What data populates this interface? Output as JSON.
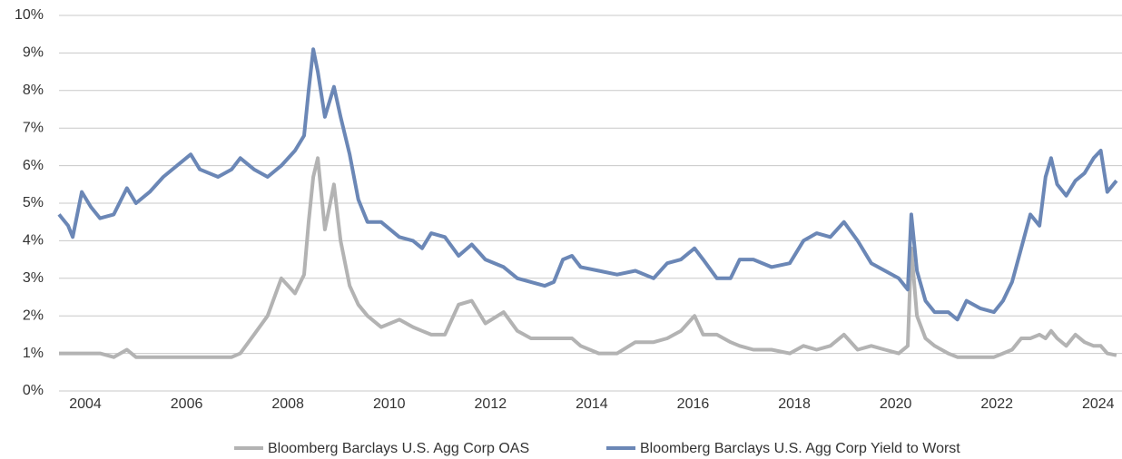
{
  "chart_data": {
    "type": "line",
    "x": [
      2003.48,
      2003.66,
      2003.75,
      2003.93,
      2004.11,
      2004.29,
      2004.56,
      2004.82,
      2005.0,
      2005.27,
      2005.54,
      2005.81,
      2006.08,
      2006.26,
      2006.62,
      2006.89,
      2007.06,
      2007.33,
      2007.6,
      2007.87,
      2008.14,
      2008.32,
      2008.41,
      2008.5,
      2008.59,
      2008.73,
      2008.91,
      2009.04,
      2009.22,
      2009.39,
      2009.57,
      2009.84,
      2010.2,
      2010.47,
      2010.65,
      2010.83,
      2011.1,
      2011.37,
      2011.63,
      2011.9,
      2012.26,
      2012.53,
      2012.8,
      2013.07,
      2013.25,
      2013.43,
      2013.61,
      2013.78,
      2014.14,
      2014.5,
      2014.86,
      2015.22,
      2015.49,
      2015.76,
      2016.03,
      2016.2,
      2016.47,
      2016.74,
      2016.92,
      2017.19,
      2017.55,
      2017.91,
      2018.18,
      2018.44,
      2018.71,
      2018.98,
      2019.25,
      2019.52,
      2019.79,
      2020.06,
      2020.24,
      2020.31,
      2020.42,
      2020.59,
      2020.77,
      2021.04,
      2021.22,
      2021.4,
      2021.67,
      2021.94,
      2022.12,
      2022.3,
      2022.48,
      2022.66,
      2022.84,
      2022.96,
      2023.07,
      2023.19,
      2023.37,
      2023.55,
      2023.73,
      2023.91,
      2024.05,
      2024.18,
      2024.36
    ],
    "series": [
      {
        "name": "Bloomberg Barclays U.S. Agg Corp OAS",
        "color": "#b3b3b3",
        "values": [
          1.0,
          1.0,
          1.0,
          1.0,
          1.0,
          1.0,
          0.9,
          1.1,
          0.9,
          0.9,
          0.9,
          0.9,
          0.9,
          0.9,
          0.9,
          0.9,
          1.0,
          1.5,
          2.0,
          3.0,
          2.6,
          3.1,
          4.5,
          5.7,
          6.2,
          4.3,
          5.5,
          4.0,
          2.8,
          2.3,
          2.0,
          1.7,
          1.9,
          1.7,
          1.6,
          1.5,
          1.5,
          2.3,
          2.4,
          1.8,
          2.1,
          1.6,
          1.4,
          1.4,
          1.4,
          1.4,
          1.4,
          1.2,
          1.0,
          1.0,
          1.3,
          1.3,
          1.4,
          1.6,
          2.0,
          1.5,
          1.5,
          1.3,
          1.2,
          1.1,
          1.1,
          1.0,
          1.2,
          1.1,
          1.2,
          1.5,
          1.1,
          1.2,
          1.1,
          1.0,
          1.2,
          3.8,
          2.0,
          1.4,
          1.2,
          1.0,
          0.9,
          0.9,
          0.9,
          0.9,
          1.0,
          1.1,
          1.4,
          1.4,
          1.5,
          1.4,
          1.6,
          1.4,
          1.2,
          1.5,
          1.3,
          1.2,
          1.2,
          1.0,
          0.95
        ]
      },
      {
        "name": "Bloomberg Barclays U.S. Agg Corp Yield to Worst",
        "color": "#6b87b6",
        "values": [
          4.7,
          4.4,
          4.1,
          5.3,
          4.9,
          4.6,
          4.7,
          5.4,
          5.0,
          5.3,
          5.7,
          6.0,
          6.3,
          5.9,
          5.7,
          5.9,
          6.2,
          5.9,
          5.7,
          6.0,
          6.4,
          6.8,
          8.0,
          9.1,
          8.5,
          7.3,
          8.1,
          7.3,
          6.3,
          5.1,
          4.5,
          4.5,
          4.1,
          4.0,
          3.8,
          4.2,
          4.1,
          3.6,
          3.9,
          3.5,
          3.3,
          3.0,
          2.9,
          2.8,
          2.9,
          3.5,
          3.6,
          3.3,
          3.2,
          3.1,
          3.2,
          3.0,
          3.4,
          3.5,
          3.8,
          3.5,
          3.0,
          3.0,
          3.5,
          3.5,
          3.3,
          3.4,
          4.0,
          4.2,
          4.1,
          4.5,
          4.0,
          3.4,
          3.2,
          3.0,
          2.7,
          4.7,
          3.2,
          2.4,
          2.1,
          2.1,
          1.9,
          2.4,
          2.2,
          2.1,
          2.4,
          2.9,
          3.8,
          4.7,
          4.4,
          5.7,
          6.2,
          5.5,
          5.2,
          5.6,
          5.8,
          6.2,
          6.4,
          5.3,
          5.6
        ]
      }
    ],
    "xlim": [
      2003.48,
      2024.47
    ],
    "xticks": [
      2004,
      2006,
      2008,
      2010,
      2012,
      2014,
      2016,
      2018,
      2020,
      2022,
      2024
    ],
    "ylim": [
      0,
      10
    ],
    "yticks": [
      {
        "value": 0,
        "label": "0%"
      },
      {
        "value": 1,
        "label": "1%"
      },
      {
        "value": 2,
        "label": "2%"
      },
      {
        "value": 3,
        "label": "3%"
      },
      {
        "value": 4,
        "label": "4%"
      },
      {
        "value": 5,
        "label": "5%"
      },
      {
        "value": 6,
        "label": "6%"
      },
      {
        "value": 7,
        "label": "7%"
      },
      {
        "value": 8,
        "label": "8%"
      },
      {
        "value": 9,
        "label": "9%"
      },
      {
        "value": 10,
        "label": "10%"
      }
    ],
    "grid": true,
    "legend": "bottom"
  }
}
